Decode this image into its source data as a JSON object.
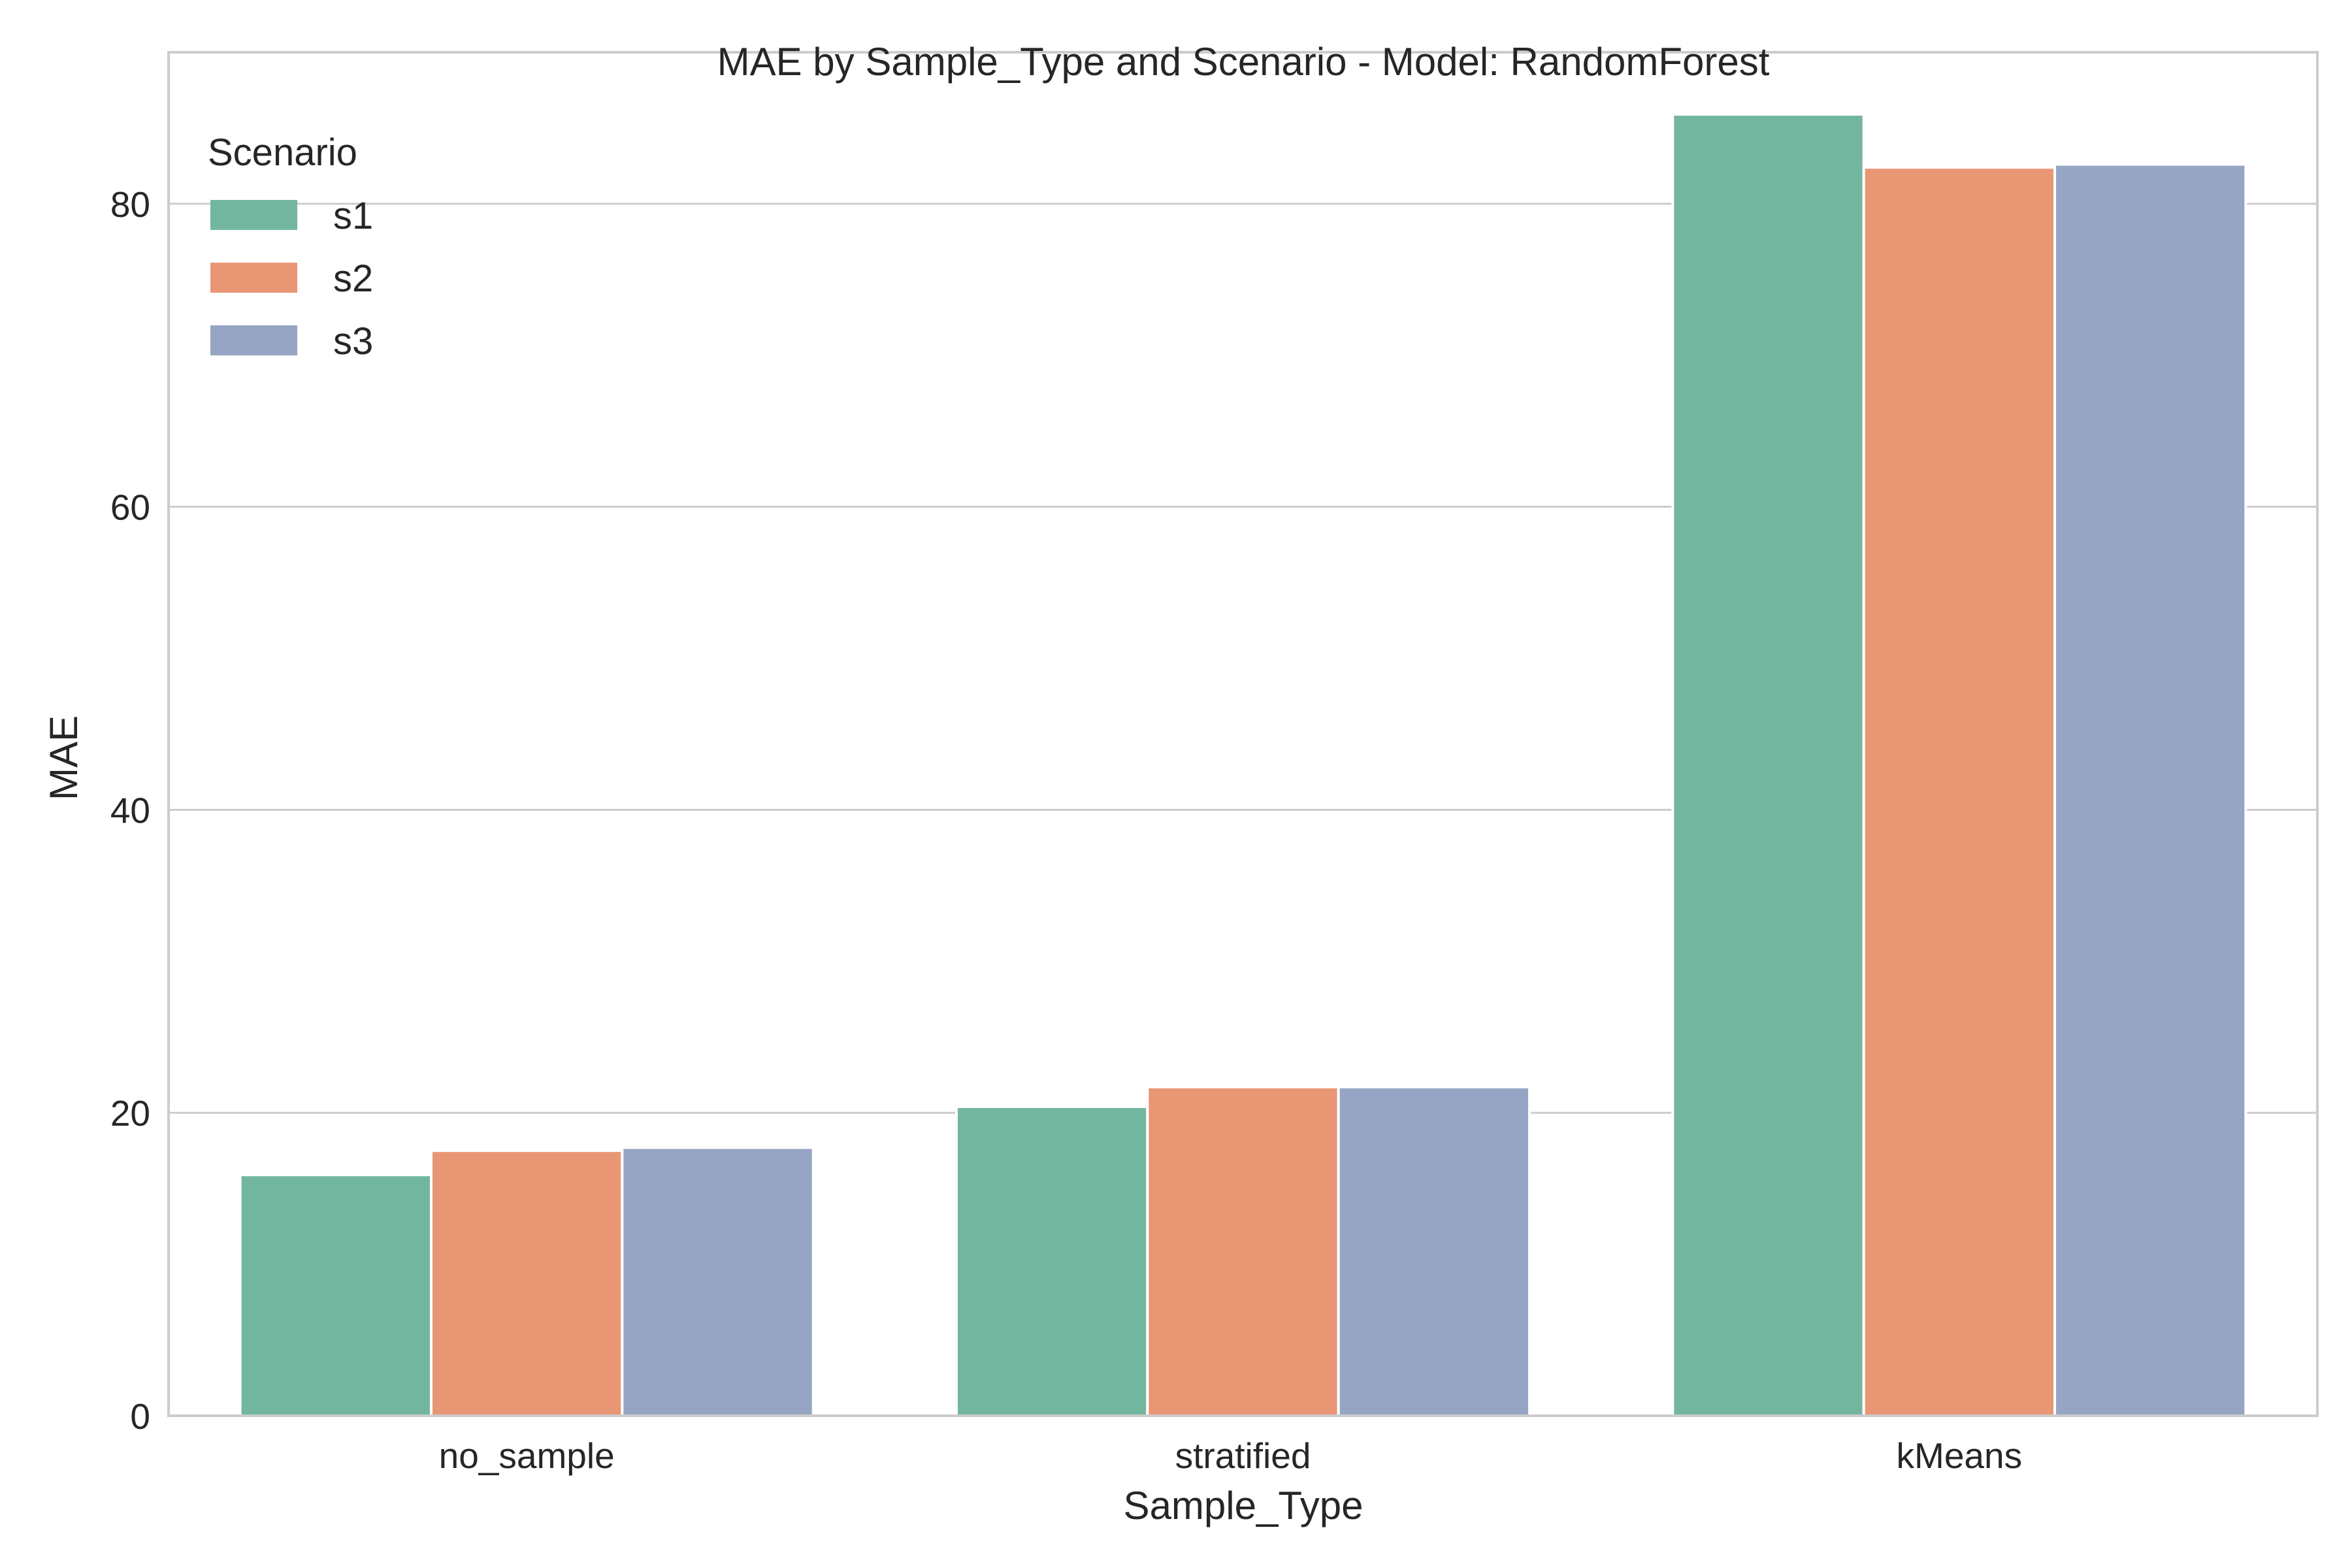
{
  "chart_data": {
    "type": "bar",
    "title": "MAE by Sample_Type and Scenario - Model: RandomForest",
    "xlabel": "Sample_Type",
    "ylabel": "MAE",
    "categories": [
      "no_sample",
      "stratified",
      "kMeans"
    ],
    "series": [
      {
        "name": "s1",
        "values": [
          15.9,
          20.4,
          85.9
        ]
      },
      {
        "name": "s2",
        "values": [
          17.5,
          21.7,
          82.4
        ]
      },
      {
        "name": "s3",
        "values": [
          17.7,
          21.7,
          82.6
        ]
      }
    ],
    "ylim": [
      0,
      90
    ],
    "yticks": [
      "0",
      "20",
      "40",
      "60",
      "80"
    ],
    "grid": true,
    "legend": {
      "title": "Scenario",
      "placement": "top-left"
    },
    "colors": [
      "#73b69f",
      "#e99675",
      "#96a5c3"
    ]
  }
}
